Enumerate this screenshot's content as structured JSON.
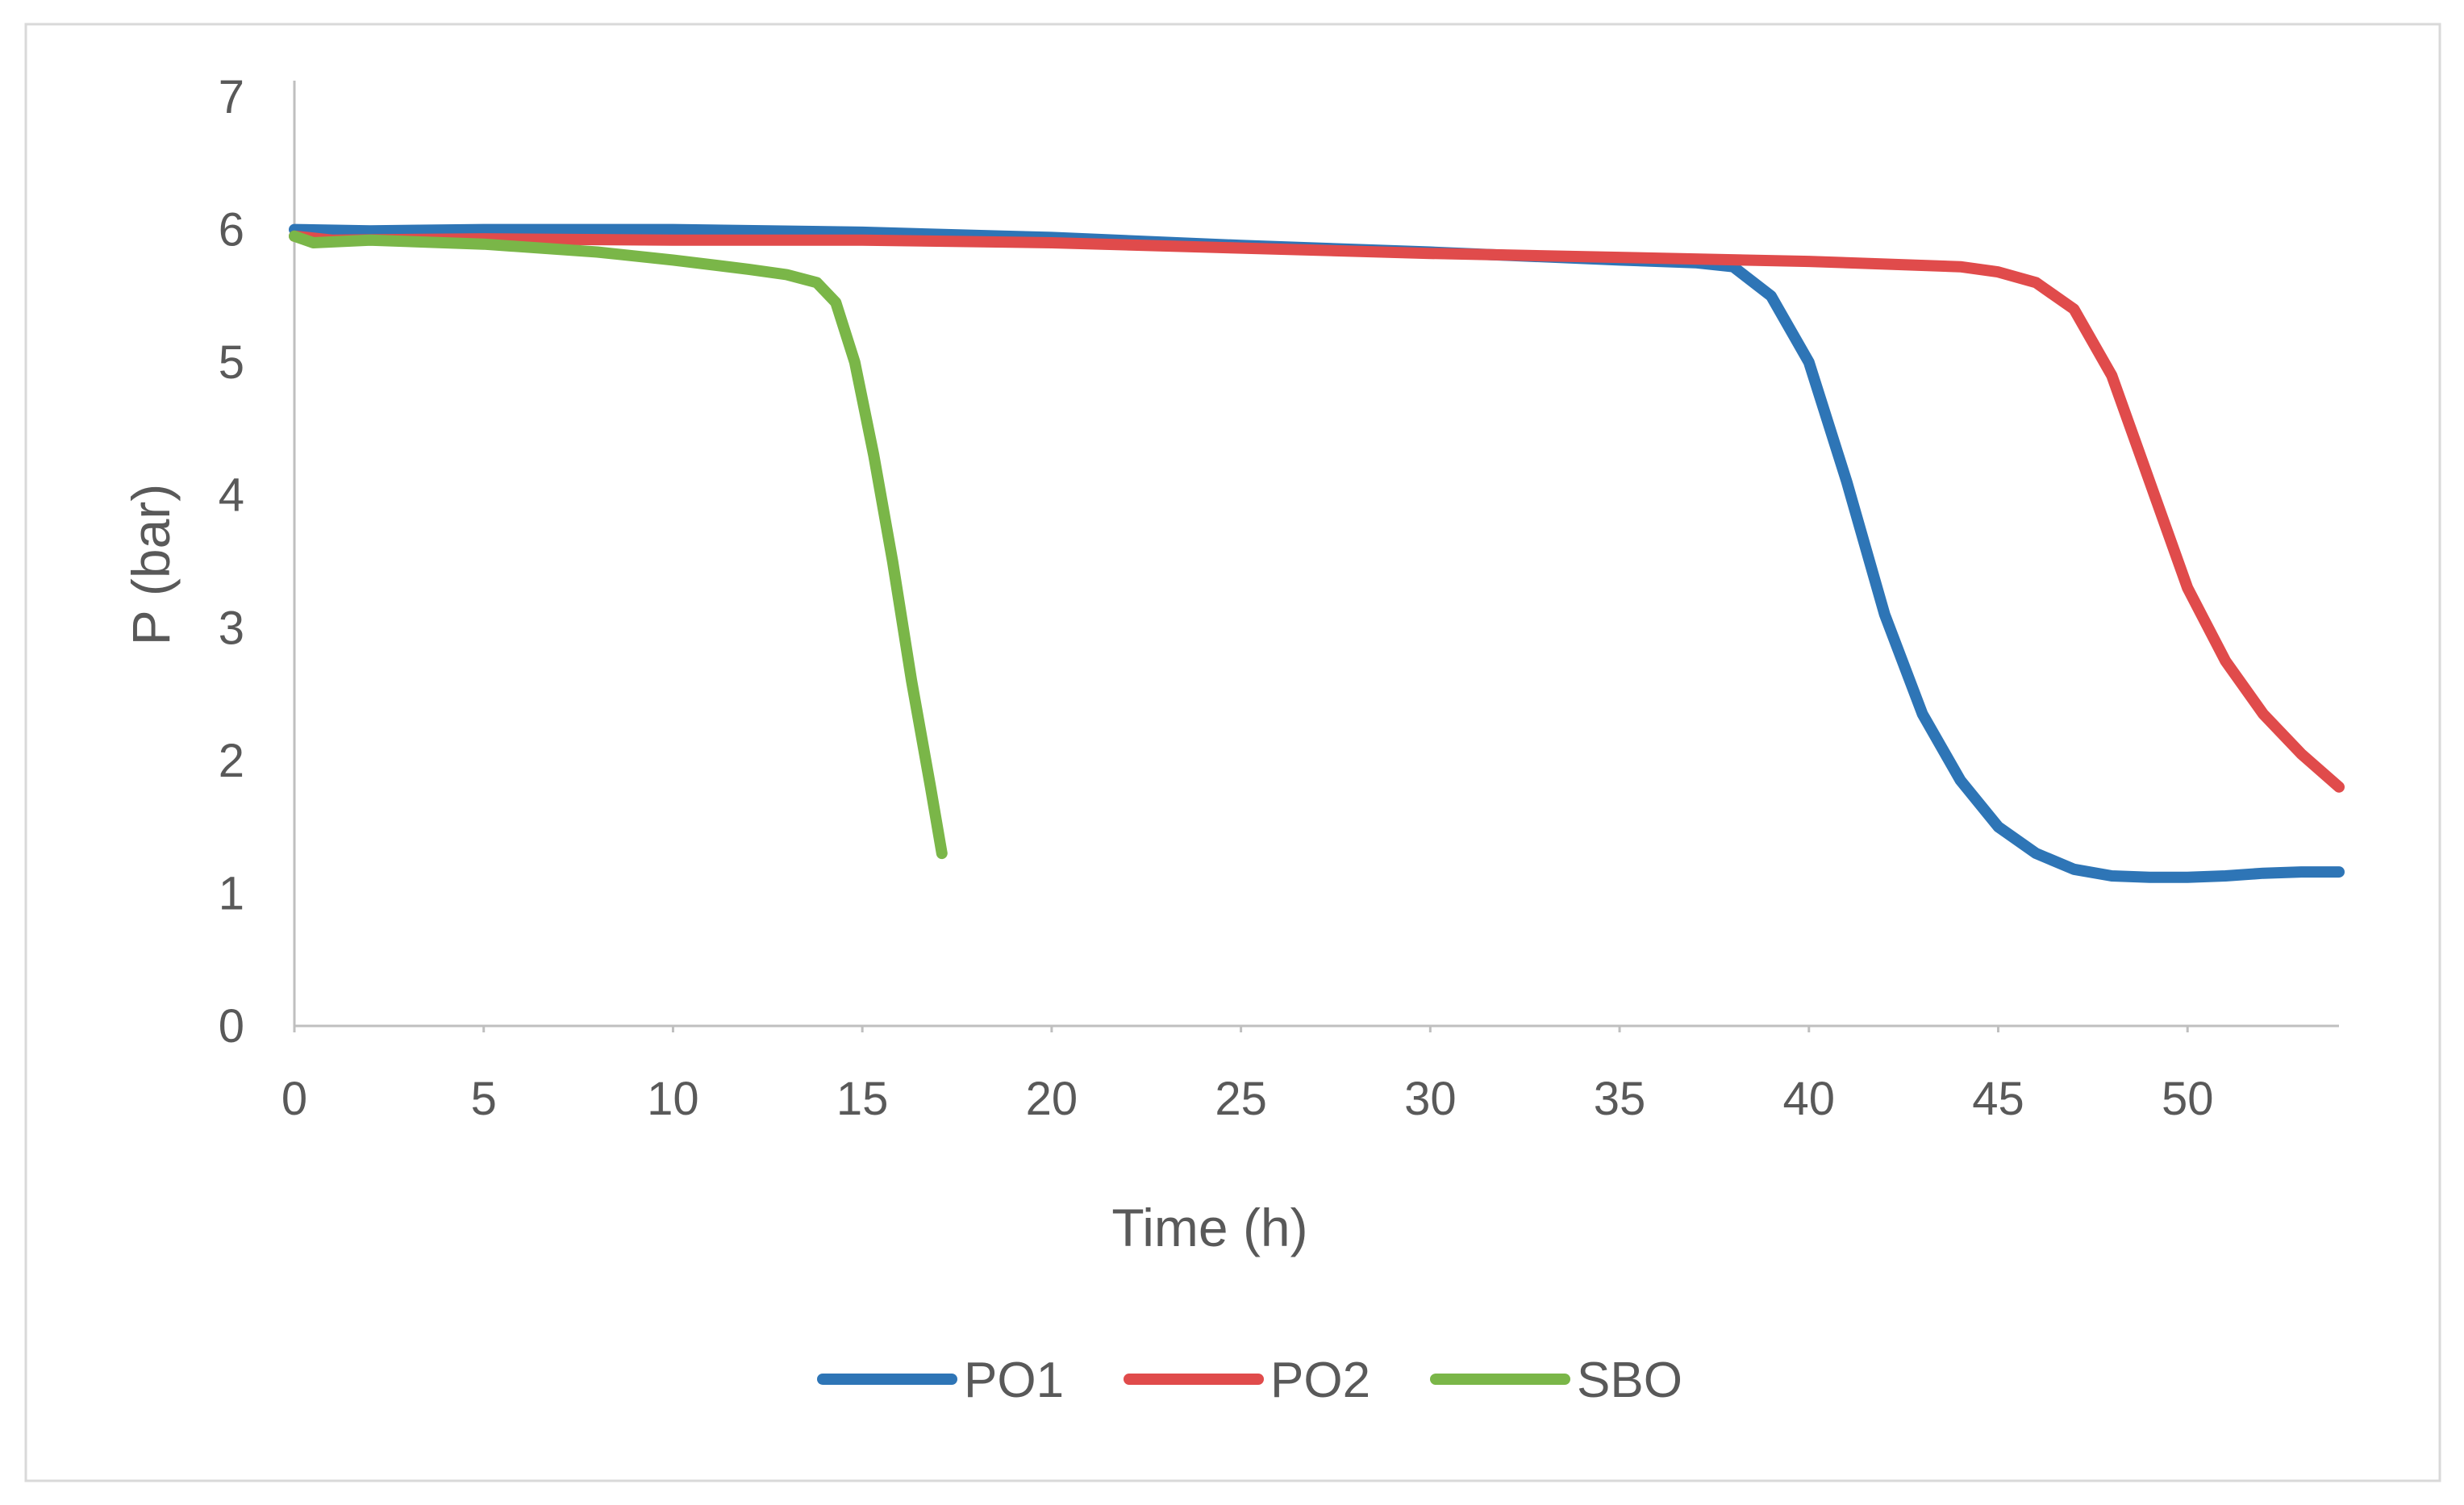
{
  "chart_data": {
    "type": "line",
    "title": "",
    "xlabel": "Time (h)",
    "ylabel": "P (bar)",
    "xlim": [
      0,
      54
    ],
    "ylim": [
      0,
      7
    ],
    "x_ticks": [
      0,
      5,
      10,
      15,
      20,
      25,
      30,
      35,
      40,
      45,
      50
    ],
    "y_ticks": [
      0,
      1,
      2,
      3,
      4,
      5,
      6,
      7
    ],
    "grid": false,
    "legend_position": "bottom",
    "series": [
      {
        "name": "PO1",
        "color": "#2E75B6",
        "points": [
          [
            0,
            6.0
          ],
          [
            2,
            5.99
          ],
          [
            5,
            6.0
          ],
          [
            10,
            6.0
          ],
          [
            15,
            5.98
          ],
          [
            20,
            5.94
          ],
          [
            25,
            5.88
          ],
          [
            30,
            5.83
          ],
          [
            35,
            5.77
          ],
          [
            37,
            5.75
          ],
          [
            38,
            5.72
          ],
          [
            39,
            5.5
          ],
          [
            40,
            5.0
          ],
          [
            41,
            4.1
          ],
          [
            42,
            3.1
          ],
          [
            43,
            2.35
          ],
          [
            44,
            1.85
          ],
          [
            45,
            1.5
          ],
          [
            46,
            1.3
          ],
          [
            47,
            1.18
          ],
          [
            48,
            1.13
          ],
          [
            49,
            1.12
          ],
          [
            50,
            1.12
          ],
          [
            51,
            1.13
          ],
          [
            52,
            1.15
          ],
          [
            53,
            1.16
          ],
          [
            54,
            1.16
          ]
        ]
      },
      {
        "name": "PO2",
        "color": "#E04B4B",
        "points": [
          [
            0,
            5.95
          ],
          [
            1,
            5.92
          ],
          [
            5,
            5.93
          ],
          [
            10,
            5.92
          ],
          [
            15,
            5.92
          ],
          [
            20,
            5.9
          ],
          [
            25,
            5.86
          ],
          [
            30,
            5.82
          ],
          [
            35,
            5.79
          ],
          [
            40,
            5.76
          ],
          [
            44,
            5.72
          ],
          [
            45,
            5.68
          ],
          [
            46,
            5.6
          ],
          [
            47,
            5.4
          ],
          [
            48,
            4.9
          ],
          [
            49,
            4.1
          ],
          [
            50,
            3.3
          ],
          [
            51,
            2.75
          ],
          [
            52,
            2.35
          ],
          [
            53,
            2.05
          ],
          [
            54,
            1.8
          ]
        ]
      },
      {
        "name": "SBO",
        "color": "#7AB648",
        "points": [
          [
            0,
            5.95
          ],
          [
            0.5,
            5.9
          ],
          [
            2,
            5.92
          ],
          [
            5,
            5.89
          ],
          [
            8,
            5.83
          ],
          [
            10,
            5.77
          ],
          [
            12,
            5.7
          ],
          [
            13,
            5.66
          ],
          [
            13.8,
            5.6
          ],
          [
            14.3,
            5.45
          ],
          [
            14.8,
            5.0
          ],
          [
            15.3,
            4.3
          ],
          [
            15.8,
            3.5
          ],
          [
            16.3,
            2.6
          ],
          [
            16.8,
            1.8
          ],
          [
            17.1,
            1.3
          ]
        ]
      }
    ]
  }
}
